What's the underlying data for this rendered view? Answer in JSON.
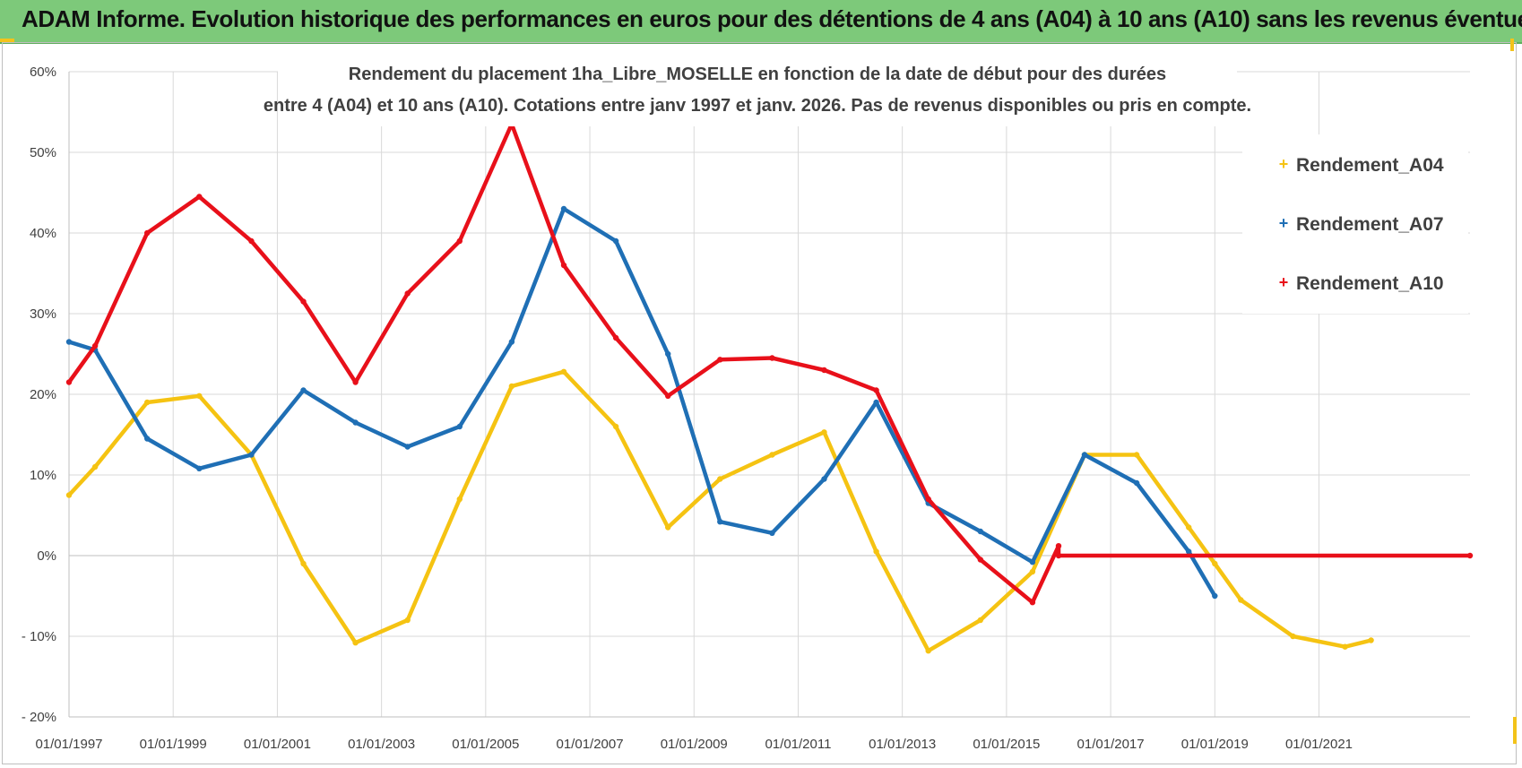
{
  "header": {
    "banner_text": "ADAM Informe. Evolution historique des performances en euros pour des détentions de 4 ans (A04) à 10 ans (A10) sans les revenus éventuels"
  },
  "colors": {
    "banner_bg": "#7dc97a",
    "A04": "#f5c312",
    "A07": "#1f6fb5",
    "A10": "#e8101a",
    "grid": "#d9d9d9"
  },
  "chart_data": {
    "type": "line",
    "title_line1": "Rendement du placement 1ha_Libre_MOSELLE en fonction de la date de début pour des durées",
    "title_line2": "entre 4 (A04) et 10 ans (A10). Cotations entre janv 1997 et janv. 2026. Pas de revenus disponibles ou pris en compte.",
    "xlabel": "",
    "ylabel": "",
    "xlim": [
      1997.0,
      2023.9
    ],
    "ylim": [
      -20,
      60
    ],
    "x_tick_labels": [
      {
        "x": 1997,
        "label": "01/01/1997"
      },
      {
        "x": 1999,
        "label": "01/01/1999"
      },
      {
        "x": 2001,
        "label": "01/01/2001"
      },
      {
        "x": 2003,
        "label": "01/01/2003"
      },
      {
        "x": 2005,
        "label": "01/01/2005"
      },
      {
        "x": 2007,
        "label": "01/01/2007"
      },
      {
        "x": 2009,
        "label": "01/01/2009"
      },
      {
        "x": 2011,
        "label": "01/01/2011"
      },
      {
        "x": 2013,
        "label": "01/01/2013"
      },
      {
        "x": 2015,
        "label": "01/01/2015"
      },
      {
        "x": 2017,
        "label": "01/01/2017"
      },
      {
        "x": 2019,
        "label": "01/01/2019"
      },
      {
        "x": 2021,
        "label": "01/01/2021"
      }
    ],
    "y_ticks": [
      {
        "v": 60,
        "label": "60%"
      },
      {
        "v": 50,
        "label": "50%"
      },
      {
        "v": 40,
        "label": "40%"
      },
      {
        "v": 30,
        "label": "30%"
      },
      {
        "v": 20,
        "label": "20%"
      },
      {
        "v": 10,
        "label": "10%"
      },
      {
        "v": 0,
        "label": "0%"
      },
      {
        "v": -10,
        "label": "- 10%"
      },
      {
        "v": -20,
        "label": "- 20%"
      }
    ],
    "grid": true,
    "legend_position": "top-right",
    "series": [
      {
        "name": "Rendement_A04",
        "color": "#f5c312",
        "points": [
          [
            1997.0,
            7.5
          ],
          [
            1997.5,
            11
          ],
          [
            1998.5,
            19
          ],
          [
            1999.5,
            19.8
          ],
          [
            2000.5,
            12.5
          ],
          [
            2001.5,
            -1
          ],
          [
            2002.5,
            -10.8
          ],
          [
            2003.5,
            -8
          ],
          [
            2004.5,
            7
          ],
          [
            2005.5,
            21
          ],
          [
            2006.5,
            22.8
          ],
          [
            2007.5,
            16
          ],
          [
            2008.5,
            3.5
          ],
          [
            2009.5,
            9.5
          ],
          [
            2010.5,
            12.5
          ],
          [
            2011.5,
            15.3
          ],
          [
            2012.5,
            0.5
          ],
          [
            2013.5,
            -11.8
          ],
          [
            2014.5,
            -8
          ],
          [
            2015.5,
            -2
          ],
          [
            2016.5,
            12.5
          ],
          [
            2017.5,
            12.5
          ],
          [
            2018.5,
            3.5
          ],
          [
            2019.0,
            -1
          ],
          [
            2019.5,
            -5.5
          ],
          [
            2020.5,
            -10
          ],
          [
            2021.5,
            -11.3
          ],
          [
            2022.0,
            -10.5
          ]
        ]
      },
      {
        "name": "Rendement_A07",
        "color": "#1f6fb5",
        "points": [
          [
            1997.0,
            26.5
          ],
          [
            1997.5,
            25.5
          ],
          [
            1998.5,
            14.5
          ],
          [
            1999.5,
            10.8
          ],
          [
            2000.5,
            12.5
          ],
          [
            2001.5,
            20.5
          ],
          [
            2002.5,
            16.5
          ],
          [
            2003.5,
            13.5
          ],
          [
            2004.5,
            16
          ],
          [
            2005.5,
            26.5
          ],
          [
            2006.5,
            43
          ],
          [
            2007.5,
            39
          ],
          [
            2008.5,
            25
          ],
          [
            2009.5,
            4.2
          ],
          [
            2010.5,
            2.8
          ],
          [
            2011.5,
            9.5
          ],
          [
            2012.5,
            19
          ],
          [
            2013.5,
            6.5
          ],
          [
            2014.5,
            3
          ],
          [
            2015.5,
            -0.8
          ],
          [
            2016.5,
            12.5
          ],
          [
            2017.5,
            9
          ],
          [
            2018.5,
            0.5
          ],
          [
            2019.0,
            -5
          ]
        ]
      },
      {
        "name": "Rendement_A10",
        "color": "#e8101a",
        "points": [
          [
            1997.0,
            21.5
          ],
          [
            1997.5,
            26
          ],
          [
            1998.5,
            40
          ],
          [
            1999.5,
            44.5
          ],
          [
            2000.5,
            39
          ],
          [
            2001.5,
            31.5
          ],
          [
            2002.5,
            21.5
          ],
          [
            2003.5,
            32.5
          ],
          [
            2004.5,
            39
          ],
          [
            2005.5,
            53.5
          ],
          [
            2006.5,
            36
          ],
          [
            2007.5,
            27
          ],
          [
            2008.5,
            19.8
          ],
          [
            2009.5,
            24.3
          ],
          [
            2010.5,
            24.5
          ],
          [
            2011.5,
            23
          ],
          [
            2012.5,
            20.5
          ],
          [
            2013.5,
            7
          ],
          [
            2014.5,
            -0.5
          ],
          [
            2015.5,
            -5.8
          ],
          [
            2016.0,
            1.2
          ],
          [
            2016.0,
            0
          ],
          [
            2023.9,
            0
          ]
        ]
      }
    ]
  }
}
